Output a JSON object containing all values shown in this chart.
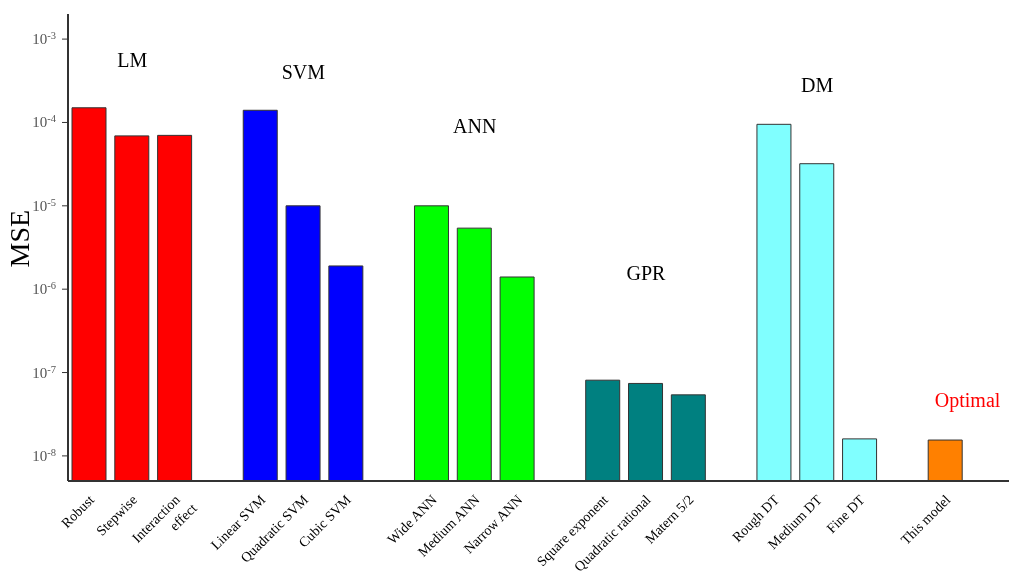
{
  "chart_data": {
    "type": "bar",
    "ylabel": "MSE",
    "log": true,
    "categories": [
      "Robust",
      "Stepwise",
      "Interaction\neffect",
      null,
      "Linear SVM",
      "Quadratic SVM",
      "Cubic SVM",
      null,
      "Wide ANN",
      "Medium  ANN",
      "Narrow  ANN",
      null,
      "Square exponent",
      "Quadratic rational",
      "Matern 5/2",
      null,
      "Rough DT",
      "Medium  DT",
      "Fine DT",
      null,
      "This model"
    ],
    "values": [
      0.00015,
      6.9e-05,
      7e-05,
      null,
      0.00014,
      1e-05,
      1.9e-06,
      null,
      1e-05,
      5.4e-06,
      1.4e-06,
      null,
      8.1e-08,
      7.4e-08,
      5.4e-08,
      null,
      9.5e-05,
      3.2e-05,
      1.6e-08,
      null,
      1.55e-08
    ],
    "colors": [
      "#ff0000",
      "#ff0000",
      "#ff0000",
      null,
      "#0000ff",
      "#0000ff",
      "#0000ff",
      null,
      "#00ff00",
      "#00ff00",
      "#00ff00",
      null,
      "#008080",
      "#008080",
      "#008080",
      null,
      "#80ffff",
      "#80ffff",
      "#80ffff",
      null,
      "#ff8000"
    ],
    "ylim": [
      5e-09,
      0.002
    ],
    "yticks": [
      {
        "value": 1e-08,
        "label": "10$^{-8}$"
      },
      {
        "value": 1e-07,
        "label": "10$^{-7}$"
      },
      {
        "value": 1e-06,
        "label": "10$^{-6}$"
      },
      {
        "value": 1e-05,
        "label": "10$^{-5}$"
      },
      {
        "value": 0.0001,
        "label": "10$^{-4}$"
      },
      {
        "value": 0.001,
        "label": "10$^{-3}$"
      }
    ],
    "annotations": [
      "LM",
      "SVM",
      "ANN",
      "GPR",
      "DM",
      "Optimal"
    ]
  }
}
